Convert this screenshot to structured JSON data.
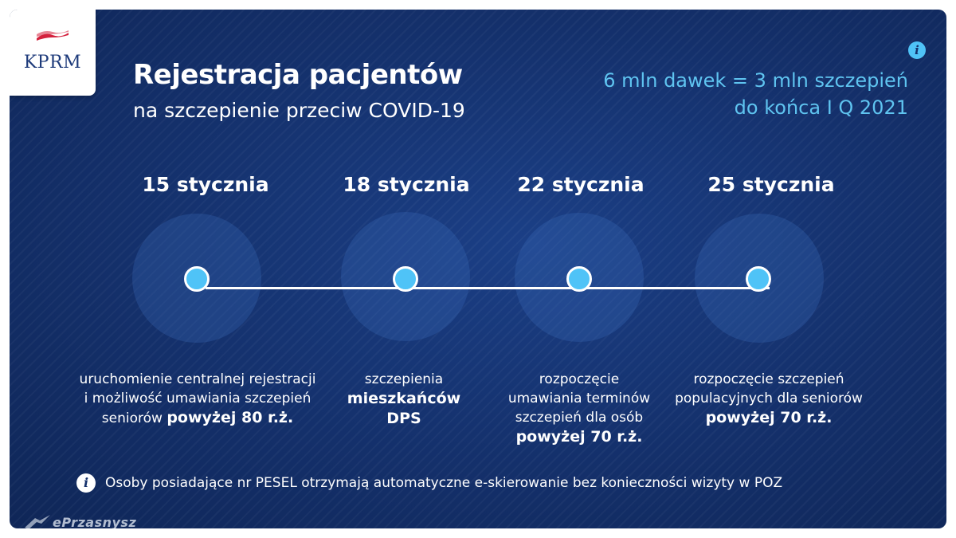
{
  "logo": {
    "text": "KPRM"
  },
  "header": {
    "title": "Rejestracja pacjentów",
    "subtitle": "na szczepienie przeciw COVID-19"
  },
  "dose_note": {
    "line1": "6 mln dawek = 3 mln szczepień",
    "line2": "do końca I Q 2021"
  },
  "info_glyph": "i",
  "timeline": [
    {
      "date": "15 stycznia",
      "lines": [
        [
          {
            "t": "uruchomienie centralnej rejestracji",
            "b": false
          }
        ],
        [
          {
            "t": "i możliwość umawiania szczepień",
            "b": false
          }
        ],
        [
          {
            "t": "seniorów ",
            "b": false
          },
          {
            "t": "powyżej 80 r.ż.",
            "b": true
          }
        ]
      ]
    },
    {
      "date": "18 stycznia",
      "lines": [
        [
          {
            "t": "szczepienia",
            "b": false
          }
        ],
        [
          {
            "t": "mieszkańców",
            "b": true
          }
        ],
        [
          {
            "t": "DPS",
            "b": true
          }
        ]
      ]
    },
    {
      "date": "22 stycznia",
      "lines": [
        [
          {
            "t": "rozpoczęcie",
            "b": false
          }
        ],
        [
          {
            "t": "umawiania terminów",
            "b": false
          }
        ],
        [
          {
            "t": "szczepień dla osób",
            "b": false
          }
        ],
        [
          {
            "t": "powyżej 70 r.ż.",
            "b": true
          }
        ]
      ]
    },
    {
      "date": "25 stycznia",
      "lines": [
        [
          {
            "t": "rozpoczęcie szczepień",
            "b": false
          }
        ],
        [
          {
            "t": "populacyjnych dla seniorów",
            "b": false
          }
        ],
        [
          {
            "t": "powyżej 70 r.ż.",
            "b": true
          }
        ]
      ]
    }
  ],
  "footer": {
    "text": "Osoby posiadające nr PESEL otrzymają automatyczne e-skierowanie bez konieczności wizyty w POZ"
  },
  "watermark": {
    "text": "ePrzasnysz"
  },
  "colors": {
    "accent": "#4fc3f7",
    "background": "#14306b",
    "dose_text": "#5fc4f0"
  }
}
